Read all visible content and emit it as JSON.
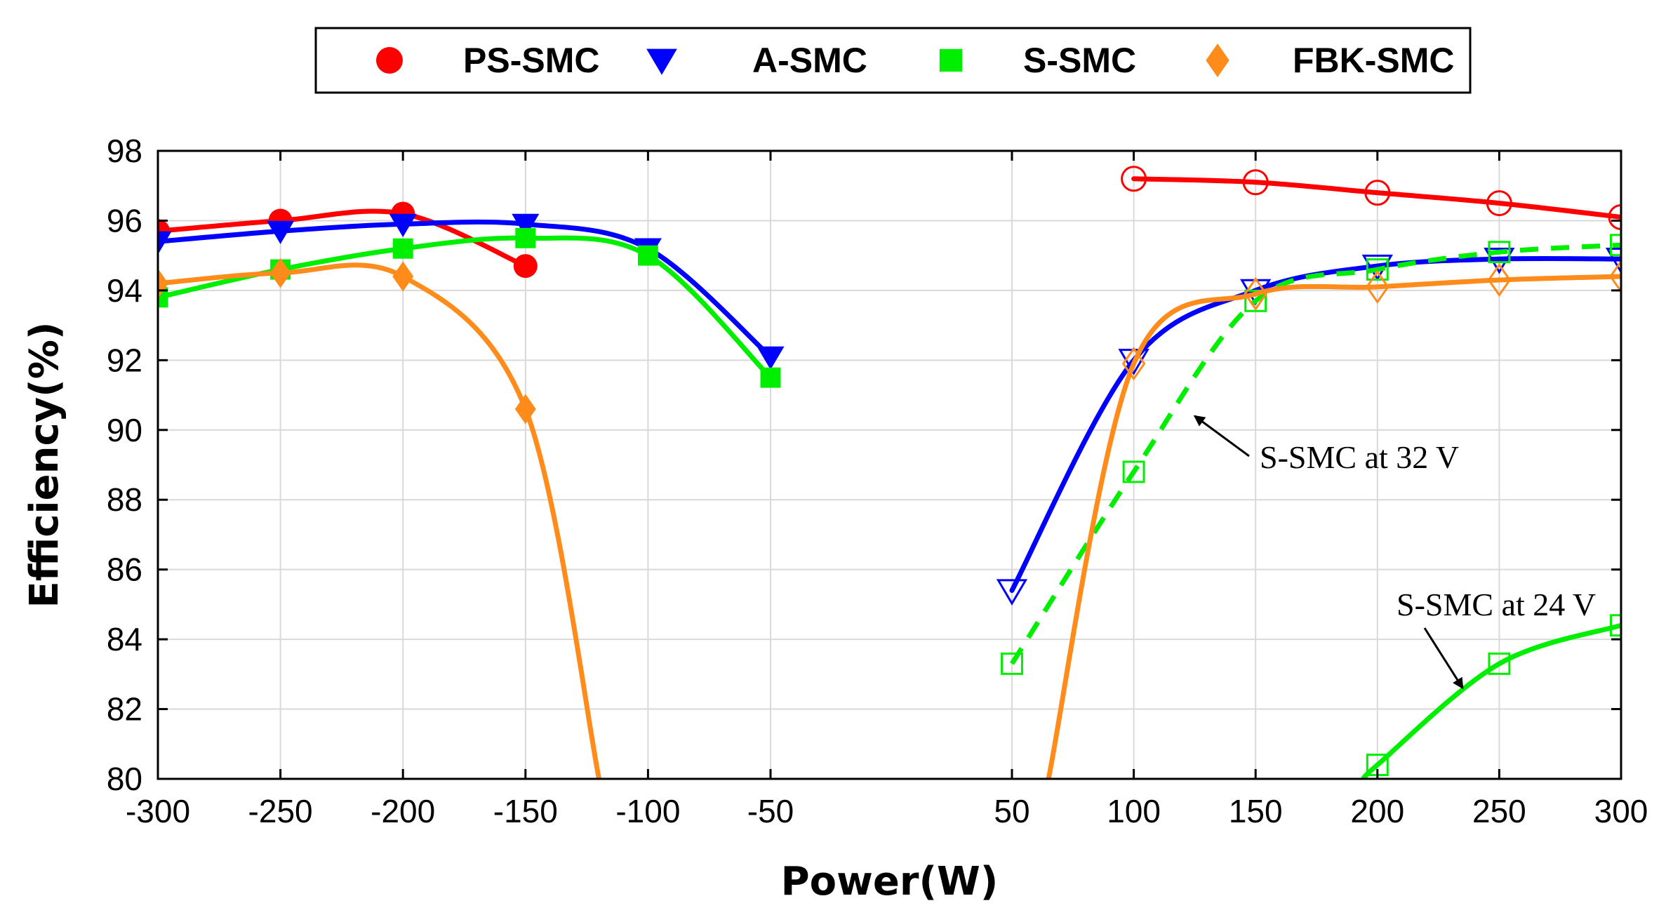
{
  "chart_data": {
    "type": "line",
    "title": "",
    "xlabel": "Power(W)",
    "ylabel": "Efficiency(%)",
    "ylim": [
      80,
      98
    ],
    "y_ticks": [
      "80",
      "82",
      "84",
      "86",
      "88",
      "90",
      "92",
      "94",
      "96",
      "98"
    ],
    "y_tick_values": [
      80,
      82,
      84,
      86,
      88,
      90,
      92,
      94,
      96,
      98
    ],
    "x_tick_labels_left": [
      "-300",
      "-250",
      "-200",
      "-150",
      "-100",
      "-50"
    ],
    "x_tick_values_left": [
      -300,
      -250,
      -200,
      -150,
      -100,
      -50
    ],
    "x_tick_labels_right": [
      "50",
      "100",
      "150",
      "200",
      "250",
      "300"
    ],
    "x_tick_values_right": [
      50,
      100,
      150,
      200,
      250,
      300
    ],
    "grid": true,
    "legend": {
      "placement": "top-center",
      "entries": [
        {
          "label": "PS-SMC",
          "color": "#ff0000",
          "marker": "circle"
        },
        {
          "label": "A-SMC",
          "color": "#0000ff",
          "marker": "triangle-down"
        },
        {
          "label": "S-SMC",
          "color": "#00ee00",
          "marker": "square"
        },
        {
          "label": "FBK-SMC",
          "color": "#ff8c1a",
          "marker": "diamond"
        }
      ]
    },
    "series": [
      {
        "name": "PS-SMC",
        "color": "#ff0000",
        "marker": "circle",
        "filled": true,
        "dashed": false,
        "x": [
          -300,
          -250,
          -200,
          -150
        ],
        "y": [
          95.7,
          96.0,
          96.2,
          94.7
        ]
      },
      {
        "name": "A-SMC",
        "color": "#0000ff",
        "marker": "triangle-down",
        "filled": true,
        "dashed": false,
        "x": [
          -300,
          -250,
          -200,
          -150,
          -100,
          -50
        ],
        "y": [
          95.4,
          95.7,
          95.9,
          95.9,
          95.2,
          92.1
        ]
      },
      {
        "name": "S-SMC",
        "color": "#00ee00",
        "marker": "square",
        "filled": true,
        "dashed": false,
        "x": [
          -300,
          -250,
          -200,
          -150,
          -100,
          -50
        ],
        "y": [
          93.8,
          94.6,
          95.2,
          95.5,
          95.0,
          91.5
        ]
      },
      {
        "name": "FBK-SMC",
        "color": "#ff8c1a",
        "marker": "diamond",
        "filled": true,
        "dashed": false,
        "x": [
          -300,
          -250,
          -200,
          -150
        ],
        "y": [
          94.2,
          94.5,
          94.4,
          90.6
        ],
        "tail_to": [
          -120,
          80
        ]
      },
      {
        "name": "PS-SMC",
        "color": "#ff0000",
        "marker": "circle",
        "filled": false,
        "dashed": false,
        "x": [
          100,
          150,
          200,
          250,
          300
        ],
        "y": [
          97.2,
          97.1,
          96.8,
          96.5,
          96.1
        ]
      },
      {
        "name": "A-SMC",
        "color": "#0000ff",
        "marker": "triangle-down",
        "filled": false,
        "dashed": false,
        "x": [
          50,
          100,
          150,
          200,
          250,
          300
        ],
        "y": [
          85.4,
          92.0,
          94.0,
          94.7,
          94.9,
          94.9
        ]
      },
      {
        "name": "S-SMC at 32 V",
        "color": "#00ee00",
        "marker": "square",
        "filled": false,
        "dashed": true,
        "x": [
          50,
          100,
          150,
          200,
          250,
          300
        ],
        "y": [
          83.3,
          88.8,
          93.7,
          94.6,
          95.1,
          95.3
        ]
      },
      {
        "name": "FBK-SMC",
        "color": "#ff8c1a",
        "marker": "diamond",
        "filled": false,
        "dashed": false,
        "x": [
          100,
          150,
          200,
          250,
          300
        ],
        "y": [
          91.9,
          93.9,
          94.1,
          94.3,
          94.4
        ],
        "head_from": [
          65,
          80
        ]
      },
      {
        "name": "S-SMC at 24 V",
        "color": "#00ee00",
        "marker": "square",
        "filled": false,
        "dashed": false,
        "x": [
          200,
          250,
          300
        ],
        "y": [
          80.4,
          83.3,
          84.4
        ],
        "head_from": [
          195,
          80
        ]
      }
    ],
    "annotations": [
      {
        "text": "S-SMC at 32 V",
        "arrow_to": [
          125,
          90.4
        ]
      },
      {
        "text": "S-SMC at 24 V",
        "arrow_to": [
          235,
          82.6
        ]
      }
    ]
  }
}
